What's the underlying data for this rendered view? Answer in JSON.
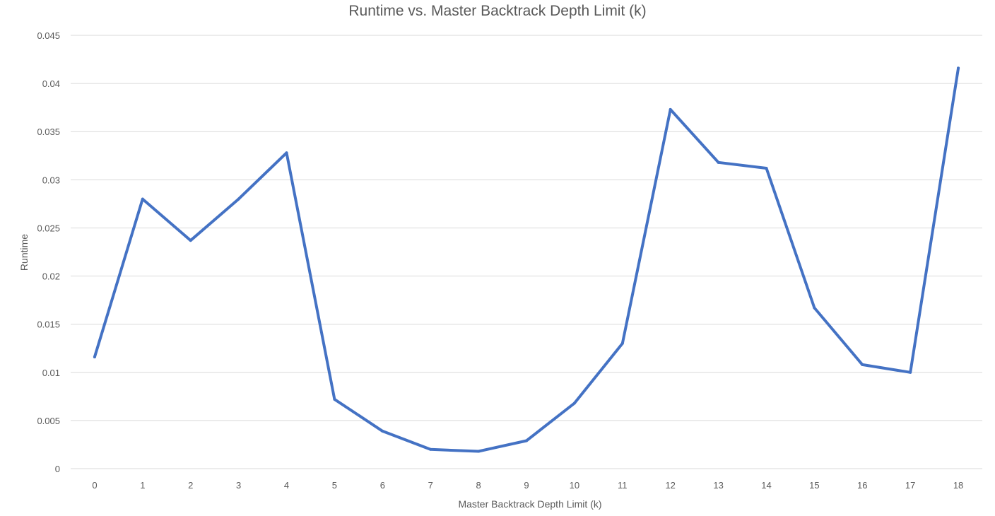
{
  "chart_data": {
    "type": "line",
    "title": "Runtime vs. Master Backtrack Depth Limit (k)",
    "xlabel": "Master Backtrack Depth Limit (k)",
    "ylabel": "Runtime",
    "categories": [
      "0",
      "1",
      "2",
      "3",
      "4",
      "5",
      "6",
      "7",
      "8",
      "9",
      "10",
      "11",
      "12",
      "13",
      "14",
      "15",
      "16",
      "17",
      "18"
    ],
    "series": [
      {
        "values": [
          0.0116,
          0.028,
          0.0237,
          0.028,
          0.0328,
          0.0072,
          0.0039,
          0.002,
          0.0018,
          0.0029,
          0.0068,
          0.013,
          0.0373,
          0.0318,
          0.0312,
          0.0167,
          0.0108,
          0.01,
          0.0416
        ]
      }
    ],
    "ylim": [
      0,
      0.045
    ],
    "yticks": [
      "0",
      "0.005",
      "0.01",
      "0.015",
      "0.02",
      "0.025",
      "0.03",
      "0.035",
      "0.04",
      "0.045"
    ],
    "grid": true,
    "legend": "none",
    "colors": {
      "line": "#4472c4",
      "grid": "#d9d9d9",
      "text": "#595959"
    }
  }
}
